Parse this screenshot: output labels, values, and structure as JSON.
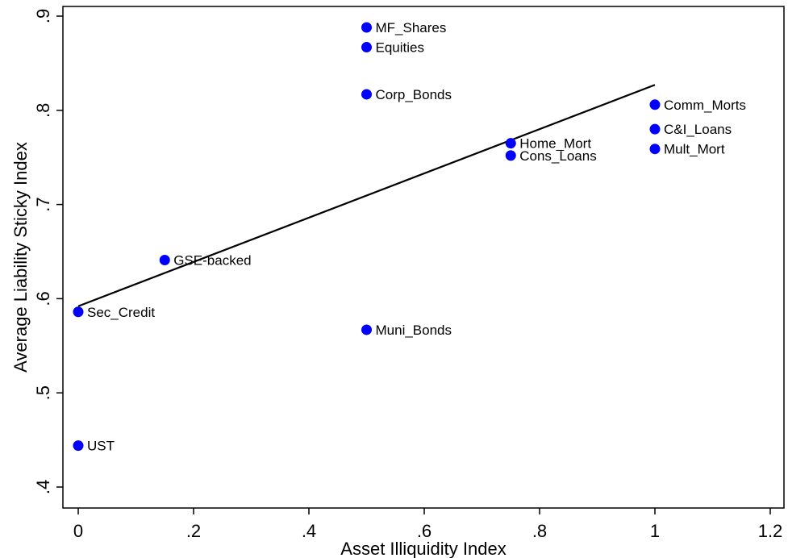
{
  "chart_data": {
    "type": "scatter",
    "xlabel": "Asset Illiquidity Index",
    "ylabel": "Average Liability Sticky Index",
    "xlim": [
      0,
      1.2
    ],
    "ylim": [
      0.4,
      0.9
    ],
    "grid": false,
    "legend": "none",
    "x_ticks": [
      {
        "value": 0,
        "label": "0"
      },
      {
        "value": 0.2,
        "label": ".2"
      },
      {
        "value": 0.4,
        "label": ".4"
      },
      {
        "value": 0.6,
        "label": ".6"
      },
      {
        "value": 0.8,
        "label": ".8"
      },
      {
        "value": 1.0,
        "label": "1"
      },
      {
        "value": 1.2,
        "label": "1.2"
      }
    ],
    "y_ticks": [
      {
        "value": 0.4,
        "label": ".4"
      },
      {
        "value": 0.5,
        "label": ".5"
      },
      {
        "value": 0.6,
        "label": ".6"
      },
      {
        "value": 0.7,
        "label": ".7"
      },
      {
        "value": 0.8,
        "label": ".8"
      },
      {
        "value": 0.9,
        "label": ".9"
      }
    ],
    "points": [
      {
        "label": "MF_Shares",
        "x": 0.5,
        "y": 0.888
      },
      {
        "label": "Equities",
        "x": 0.5,
        "y": 0.867
      },
      {
        "label": "Corp_Bonds",
        "x": 0.5,
        "y": 0.817
      },
      {
        "label": "Comm_Morts",
        "x": 1.0,
        "y": 0.806
      },
      {
        "label": "C&I_Loans",
        "x": 1.0,
        "y": 0.78
      },
      {
        "label": "Home_Mort",
        "x": 0.75,
        "y": 0.765
      },
      {
        "label": "Mult_Mort",
        "x": 1.0,
        "y": 0.759
      },
      {
        "label": "Cons_Loans",
        "x": 0.75,
        "y": 0.752
      },
      {
        "label": "GSE-backed",
        "x": 0.15,
        "y": 0.641
      },
      {
        "label": "Sec_Credit",
        "x": 0.0,
        "y": 0.586
      },
      {
        "label": "Muni_Bonds",
        "x": 0.5,
        "y": 0.567
      },
      {
        "label": "UST",
        "x": 0.0,
        "y": 0.444
      }
    ],
    "fit_line": {
      "x": [
        0.0,
        1.0
      ],
      "y": [
        0.592,
        0.827
      ]
    },
    "colors": {
      "points": "#0000ff",
      "fit_line": "#000000",
      "axes": "#000000"
    }
  }
}
